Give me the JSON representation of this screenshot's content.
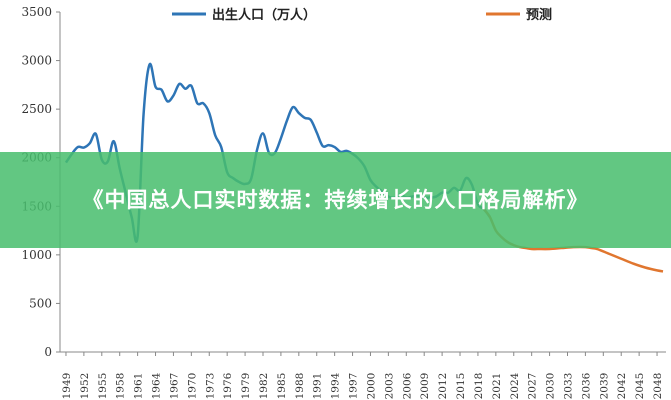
{
  "banner": {
    "title": "《中国总人口实时数据：持续增长的人口格局解析》",
    "color": "#48be6e"
  },
  "chart_data": {
    "type": "line",
    "title": "",
    "xlabel": "",
    "ylabel": "",
    "ylim": [
      0,
      3500
    ],
    "yticks": [
      0,
      500,
      1000,
      1500,
      2000,
      2500,
      3000,
      3500
    ],
    "xticks": [
      1949,
      1952,
      1955,
      1958,
      1961,
      1964,
      1967,
      1970,
      1973,
      1976,
      1979,
      1982,
      1985,
      1988,
      1991,
      1994,
      1997,
      2000,
      2003,
      2006,
      2009,
      2012,
      2015,
      2018,
      2021,
      2024,
      2027,
      2030,
      2033,
      2036,
      2039,
      2042,
      2045,
      2048
    ],
    "grid": false,
    "legend_position": "top",
    "series": [
      {
        "name": "出生人口（万人）",
        "color": "#2e75b6",
        "x": [
          1949,
          1950,
          1951,
          1952,
          1953,
          1954,
          1955,
          1956,
          1957,
          1958,
          1959,
          1960,
          1961,
          1962,
          1963,
          1964,
          1965,
          1966,
          1967,
          1968,
          1969,
          1970,
          1971,
          1972,
          1973,
          1974,
          1975,
          1976,
          1977,
          1978,
          1979,
          1980,
          1981,
          1982,
          1983,
          1984,
          1985,
          1986,
          1987,
          1988,
          1989,
          1990,
          1991,
          1992,
          1993,
          1994,
          1995,
          1996,
          1997,
          1998,
          1999,
          2000,
          2001,
          2002,
          2003,
          2004,
          2005,
          2006,
          2007,
          2008,
          2009,
          2010,
          2011,
          2012,
          2013,
          2014,
          2015,
          2016,
          2017,
          2018,
          2019,
          2020
        ],
        "values": [
          1950,
          2040,
          2110,
          2105,
          2150,
          2245,
          1980,
          1960,
          2170,
          1890,
          1640,
          1390,
          1190,
          2450,
          2960,
          2730,
          2700,
          2580,
          2640,
          2760,
          2710,
          2740,
          2560,
          2560,
          2460,
          2230,
          2110,
          1850,
          1790,
          1750,
          1730,
          1780,
          2080,
          2250,
          2050,
          2050,
          2200,
          2380,
          2520,
          2460,
          2410,
          2390,
          2260,
          2120,
          2130,
          2110,
          2060,
          2070,
          2040,
          1990,
          1910,
          1770,
          1700,
          1650,
          1600,
          1590,
          1620,
          1590,
          1600,
          1610,
          1590,
          1590,
          1600,
          1640,
          1640,
          1690,
          1660,
          1790,
          1720,
          1520,
          1470,
          1390
        ]
      },
      {
        "name": "预测",
        "color": "#e0762f",
        "x": [
          2019,
          2020,
          2021,
          2022,
          2023,
          2024,
          2025,
          2026,
          2027,
          2028,
          2030,
          2032,
          2034,
          2036,
          2037,
          2038,
          2040,
          2042,
          2044,
          2046,
          2048,
          2049
        ],
        "values": [
          1470,
          1390,
          1250,
          1180,
          1130,
          1100,
          1080,
          1070,
          1060,
          1060,
          1060,
          1070,
          1080,
          1080,
          1070,
          1060,
          1010,
          960,
          910,
          870,
          840,
          830
        ]
      }
    ]
  }
}
